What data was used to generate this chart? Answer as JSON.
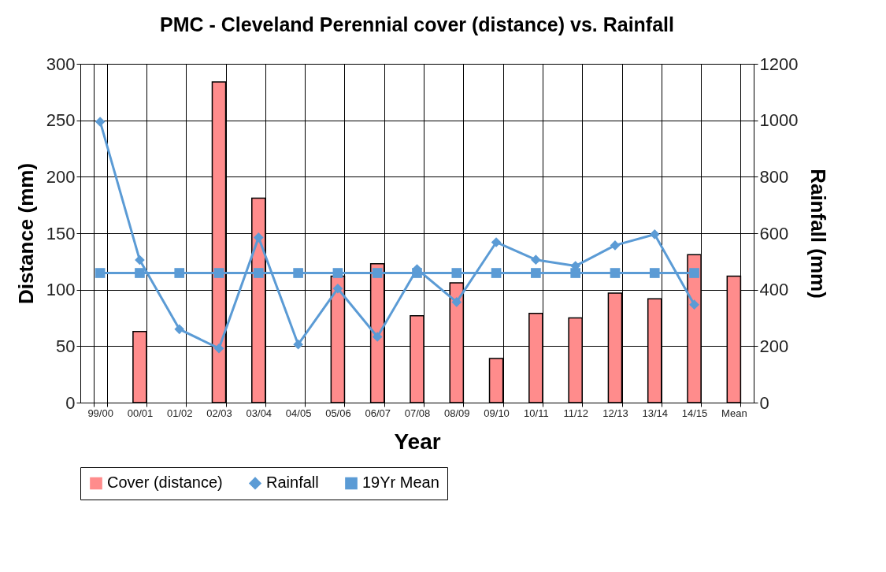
{
  "chart_data": {
    "type": "bar",
    "title": "PMC - Cleveland Perennial cover (distance) vs. Rainfall",
    "xlabel": "Year",
    "ylabel": "Distance (mm)",
    "y2label": "Rainfall (mm)",
    "categories": [
      "99/00",
      "00/01",
      "01/02",
      "02/03",
      "03/04",
      "04/05",
      "05/06",
      "06/07",
      "07/08",
      "08/09",
      "09/10",
      "10/11",
      "11/12",
      "12/13",
      "13/14",
      "14/15",
      "Mean"
    ],
    "series": [
      {
        "name": "Cover (distance)",
        "color": "#ff8c8c",
        "values": [
          null,
          63,
          null,
          284,
          181,
          null,
          112,
          123,
          77,
          106,
          39,
          79,
          75,
          97,
          92,
          131,
          112
        ]
      },
      {
        "name": "Rainfall",
        "type": "line",
        "axis": "y2",
        "marker": "diamond",
        "color": "#5b9bd5",
        "values": [
          995,
          505,
          260,
          192,
          585,
          206,
          404,
          233,
          473,
          356,
          568,
          506,
          484,
          557,
          596,
          347,
          null
        ]
      },
      {
        "name": "19Yr Mean",
        "type": "line",
        "axis": "y2",
        "marker": "square",
        "color": "#5b9bd5",
        "values": [
          459,
          459,
          459,
          459,
          459,
          459,
          459,
          459,
          459,
          459,
          459,
          459,
          459,
          459,
          459,
          459,
          null
        ]
      }
    ],
    "ylim": [
      0,
      300
    ],
    "yticks": [
      0,
      50,
      100,
      150,
      200,
      250,
      300
    ],
    "y2lim": [
      0,
      1200
    ],
    "y2ticks": [
      0,
      200,
      400,
      600,
      800,
      1000,
      1200
    ],
    "grid": true,
    "legend": "bottom"
  }
}
